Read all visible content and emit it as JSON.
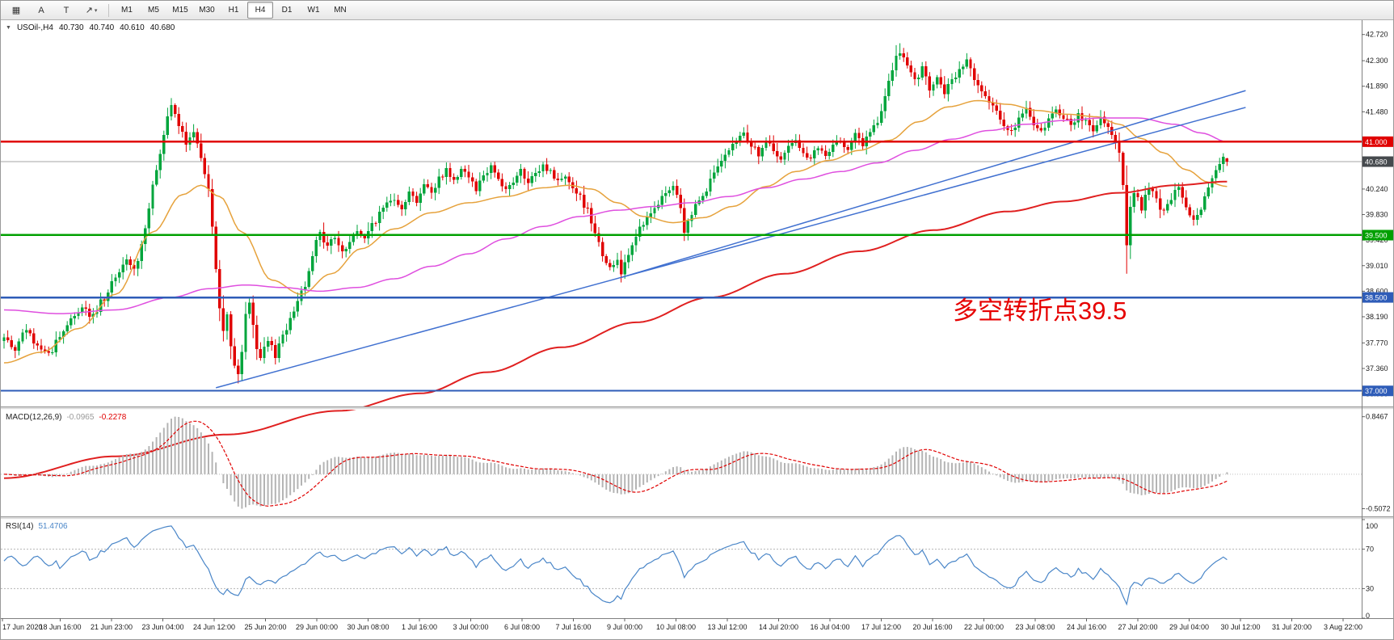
{
  "toolbar": {
    "tools": [
      {
        "id": "hatch-grid",
        "glyph": "▦"
      },
      {
        "id": "cursor-a",
        "glyph": "A"
      },
      {
        "id": "text-tool",
        "glyph": "T"
      },
      {
        "id": "arrow-tool",
        "glyph": "↗",
        "caret": "▾"
      }
    ],
    "timeframes": [
      "M1",
      "M5",
      "M15",
      "M30",
      "H1",
      "H4",
      "D1",
      "W1",
      "MN"
    ],
    "active_timeframe": "H4"
  },
  "chart": {
    "collapse_icon": "▼",
    "symbol_label": "USOil-,H4",
    "ohlc": {
      "open": "40.730",
      "high": "40.740",
      "low": "40.610",
      "close": "40.680"
    },
    "annotation": {
      "text": "多空转折点39.5",
      "color": "#e60000"
    }
  },
  "chart_data": {
    "type": "candlestick+indicators",
    "symbol": "USOil-",
    "timeframe": "H4",
    "last_ohlc": {
      "open": 40.73,
      "high": 40.74,
      "low": 40.61,
      "close": 40.68
    },
    "colors": {
      "candle_up": "#00a53c",
      "candle_down": "#e00000",
      "current_price_line": "#a6a6a6",
      "trendline": "#4070d0"
    },
    "price_axis": {
      "ticks": [
        "42.720",
        "42.300",
        "41.890",
        "41.480",
        "40.240",
        "39.830",
        "39.420",
        "39.010",
        "38.600",
        "38.190",
        "37.770",
        "37.360",
        "36.950"
      ],
      "badges": [
        {
          "text": "41.000",
          "value": 41.0,
          "color": "#e00000"
        },
        {
          "text": "40.680",
          "value": 40.68,
          "color": "#464a4e",
          "kind": "current"
        },
        {
          "text": "39.500",
          "value": 39.5,
          "color": "#00a000"
        },
        {
          "text": "38.500",
          "value": 38.5,
          "color": "#2e5cb8"
        },
        {
          "text": "37.000",
          "value": 37.0,
          "color": "#2e5cb8"
        }
      ]
    },
    "hlines": [
      {
        "value": 40.68,
        "color": "#a6a6a6",
        "width": 1,
        "kind": "current"
      },
      {
        "value": 41.0,
        "color": "#e00000",
        "width": 2.5
      },
      {
        "value": 39.5,
        "color": "#00a000",
        "width": 2.5
      },
      {
        "value": 38.5,
        "color": "#2e5cb8",
        "width": 2.5
      },
      {
        "value": 37.0,
        "color": "#2e5cb8",
        "width": 2
      }
    ],
    "trendlines": [
      {
        "i1": 57,
        "p1": 37.05,
        "i2": 334,
        "p2": 41.55
      },
      {
        "i1": 166,
        "p1": 38.82,
        "i2": 334,
        "p2": 41.82
      }
    ],
    "moving_averages": [
      {
        "name": "ma-fast-orange",
        "color": "#e6a23c",
        "w": 1.5,
        "anchors": [
          [
            0,
            37.45
          ],
          [
            10,
            37.62
          ],
          [
            20,
            38.0
          ],
          [
            30,
            38.55
          ],
          [
            40,
            39.55
          ],
          [
            48,
            40.15
          ],
          [
            53,
            40.3
          ],
          [
            58,
            40.12
          ],
          [
            64,
            39.55
          ],
          [
            72,
            38.78
          ],
          [
            80,
            38.55
          ],
          [
            88,
            38.88
          ],
          [
            96,
            39.28
          ],
          [
            105,
            39.6
          ],
          [
            115,
            39.86
          ],
          [
            125,
            40.02
          ],
          [
            135,
            40.12
          ],
          [
            145,
            40.26
          ],
          [
            152,
            40.3
          ],
          [
            158,
            40.24
          ],
          [
            165,
            40.02
          ],
          [
            172,
            39.8
          ],
          [
            180,
            39.7
          ],
          [
            188,
            39.78
          ],
          [
            196,
            39.96
          ],
          [
            205,
            40.28
          ],
          [
            213,
            40.52
          ],
          [
            222,
            40.7
          ],
          [
            230,
            40.86
          ],
          [
            238,
            41.02
          ],
          [
            246,
            41.32
          ],
          [
            254,
            41.56
          ],
          [
            262,
            41.66
          ],
          [
            270,
            41.6
          ],
          [
            278,
            41.5
          ],
          [
            286,
            41.44
          ],
          [
            294,
            41.4
          ],
          [
            300,
            41.28
          ],
          [
            306,
            41.05
          ],
          [
            312,
            40.82
          ],
          [
            318,
            40.55
          ],
          [
            324,
            40.35
          ],
          [
            329,
            40.28
          ]
        ]
      },
      {
        "name": "ma-mid-magenta",
        "color": "#df4fdf",
        "w": 1.5,
        "anchors": [
          [
            0,
            38.3
          ],
          [
            15,
            38.24
          ],
          [
            30,
            38.3
          ],
          [
            45,
            38.5
          ],
          [
            55,
            38.64
          ],
          [
            65,
            38.7
          ],
          [
            75,
            38.66
          ],
          [
            85,
            38.6
          ],
          [
            95,
            38.66
          ],
          [
            105,
            38.8
          ],
          [
            115,
            39.0
          ],
          [
            125,
            39.2
          ],
          [
            135,
            39.44
          ],
          [
            145,
            39.64
          ],
          [
            155,
            39.8
          ],
          [
            165,
            39.9
          ],
          [
            175,
            39.96
          ],
          [
            185,
            40.02
          ],
          [
            195,
            40.12
          ],
          [
            205,
            40.26
          ],
          [
            215,
            40.4
          ],
          [
            225,
            40.52
          ],
          [
            235,
            40.66
          ],
          [
            245,
            40.86
          ],
          [
            255,
            41.04
          ],
          [
            265,
            41.18
          ],
          [
            275,
            41.28
          ],
          [
            285,
            41.34
          ],
          [
            295,
            41.38
          ],
          [
            305,
            41.38
          ],
          [
            315,
            41.28
          ],
          [
            322,
            41.14
          ],
          [
            329,
            41.0
          ]
        ]
      },
      {
        "name": "ma-slow-red",
        "color": "#e02020",
        "w": 2,
        "anchors": [
          [
            0,
            35.6
          ],
          [
            30,
            35.95
          ],
          [
            60,
            36.3
          ],
          [
            90,
            36.68
          ],
          [
            112,
            36.96
          ],
          [
            130,
            37.3
          ],
          [
            150,
            37.7
          ],
          [
            170,
            38.1
          ],
          [
            190,
            38.5
          ],
          [
            210,
            38.88
          ],
          [
            230,
            39.24
          ],
          [
            250,
            39.58
          ],
          [
            270,
            39.88
          ],
          [
            285,
            40.04
          ],
          [
            300,
            40.18
          ],
          [
            315,
            40.3
          ],
          [
            329,
            40.36
          ]
        ]
      }
    ],
    "candles": {
      "count": 330,
      "close_anchors": [
        [
          0,
          37.85
        ],
        [
          3,
          37.7
        ],
        [
          6,
          37.95
        ],
        [
          9,
          37.72
        ],
        [
          12,
          37.6
        ],
        [
          15,
          37.88
        ],
        [
          18,
          38.12
        ],
        [
          21,
          38.35
        ],
        [
          24,
          38.18
        ],
        [
          27,
          38.5
        ],
        [
          30,
          38.78
        ],
        [
          33,
          39.1
        ],
        [
          35,
          38.92
        ],
        [
          37,
          39.35
        ],
        [
          39,
          39.95
        ],
        [
          41,
          40.55
        ],
        [
          43,
          41.15
        ],
        [
          45,
          41.55
        ],
        [
          47,
          41.28
        ],
        [
          49,
          40.95
        ],
        [
          51,
          41.1
        ],
        [
          53,
          40.8
        ],
        [
          55,
          40.25
        ],
        [
          56,
          39.6
        ],
        [
          57,
          38.95
        ],
        [
          58,
          38.35
        ],
        [
          59,
          37.95
        ],
        [
          60,
          38.2
        ],
        [
          61,
          37.7
        ],
        [
          62,
          37.38
        ],
        [
          63,
          37.25
        ],
        [
          64,
          37.65
        ],
        [
          65,
          38.25
        ],
        [
          66,
          38.45
        ],
        [
          67,
          38.0
        ],
        [
          68,
          37.65
        ],
        [
          69,
          37.52
        ],
        [
          71,
          37.78
        ],
        [
          73,
          37.58
        ],
        [
          75,
          37.92
        ],
        [
          77,
          38.12
        ],
        [
          79,
          38.48
        ],
        [
          81,
          38.72
        ],
        [
          83,
          39.22
        ],
        [
          85,
          39.52
        ],
        [
          87,
          39.32
        ],
        [
          89,
          39.48
        ],
        [
          91,
          39.22
        ],
        [
          93,
          39.38
        ],
        [
          95,
          39.58
        ],
        [
          97,
          39.42
        ],
        [
          99,
          39.68
        ],
        [
          101,
          39.82
        ],
        [
          103,
          40.02
        ],
        [
          105,
          40.12
        ],
        [
          107,
          39.96
        ],
        [
          109,
          40.18
        ],
        [
          111,
          40.06
        ],
        [
          113,
          40.32
        ],
        [
          115,
          40.16
        ],
        [
          117,
          40.42
        ],
        [
          119,
          40.56
        ],
        [
          121,
          40.36
        ],
        [
          123,
          40.6
        ],
        [
          125,
          40.46
        ],
        [
          127,
          40.26
        ],
        [
          129,
          40.46
        ],
        [
          131,
          40.62
        ],
        [
          133,
          40.42
        ],
        [
          135,
          40.22
        ],
        [
          137,
          40.36
        ],
        [
          139,
          40.52
        ],
        [
          141,
          40.32
        ],
        [
          143,
          40.46
        ],
        [
          145,
          40.62
        ],
        [
          147,
          40.52
        ],
        [
          149,
          40.36
        ],
        [
          151,
          40.46
        ],
        [
          153,
          40.3
        ],
        [
          155,
          40.1
        ],
        [
          157,
          39.9
        ],
        [
          159,
          39.58
        ],
        [
          161,
          39.2
        ],
        [
          163,
          38.95
        ],
        [
          165,
          39.12
        ],
        [
          166,
          38.92
        ],
        [
          168,
          39.22
        ],
        [
          170,
          39.52
        ],
        [
          172,
          39.66
        ],
        [
          174,
          39.82
        ],
        [
          176,
          40.02
        ],
        [
          178,
          40.16
        ],
        [
          180,
          40.3
        ],
        [
          182,
          39.9
        ],
        [
          183,
          39.55
        ],
        [
          185,
          39.85
        ],
        [
          187,
          40.1
        ],
        [
          189,
          40.26
        ],
        [
          191,
          40.5
        ],
        [
          193,
          40.66
        ],
        [
          195,
          40.82
        ],
        [
          197,
          41.0
        ],
        [
          199,
          41.15
        ],
        [
          201,
          40.95
        ],
        [
          203,
          40.8
        ],
        [
          205,
          41.0
        ],
        [
          207,
          40.85
        ],
        [
          209,
          40.7
        ],
        [
          211,
          40.9
        ],
        [
          213,
          41.05
        ],
        [
          215,
          40.85
        ],
        [
          217,
          40.7
        ],
        [
          219,
          40.9
        ],
        [
          221,
          40.75
        ],
        [
          223,
          40.9
        ],
        [
          225,
          41.05
        ],
        [
          227,
          40.9
        ],
        [
          229,
          41.1
        ],
        [
          231,
          40.95
        ],
        [
          233,
          41.15
        ],
        [
          235,
          41.3
        ],
        [
          237,
          41.7
        ],
        [
          239,
          42.2
        ],
        [
          241,
          42.45
        ],
        [
          243,
          42.2
        ],
        [
          245,
          41.95
        ],
        [
          247,
          42.15
        ],
        [
          249,
          41.85
        ],
        [
          251,
          42.0
        ],
        [
          253,
          41.8
        ],
        [
          255,
          41.95
        ],
        [
          257,
          42.15
        ],
        [
          259,
          42.3
        ],
        [
          261,
          42.05
        ],
        [
          263,
          41.8
        ],
        [
          265,
          41.6
        ],
        [
          267,
          41.45
        ],
        [
          269,
          41.3
        ],
        [
          271,
          41.15
        ],
        [
          273,
          41.35
        ],
        [
          275,
          41.5
        ],
        [
          277,
          41.3
        ],
        [
          279,
          41.15
        ],
        [
          281,
          41.35
        ],
        [
          283,
          41.55
        ],
        [
          285,
          41.4
        ],
        [
          287,
          41.25
        ],
        [
          289,
          41.45
        ],
        [
          291,
          41.3
        ],
        [
          293,
          41.15
        ],
        [
          295,
          41.35
        ],
        [
          297,
          41.2
        ],
        [
          299,
          41.05
        ],
        [
          300,
          40.8
        ],
        [
          301,
          40.3
        ],
        [
          302,
          39.3
        ],
        [
          303,
          40.0
        ],
        [
          304,
          40.15
        ],
        [
          306,
          39.95
        ],
        [
          308,
          40.25
        ],
        [
          310,
          40.05
        ],
        [
          312,
          39.85
        ],
        [
          314,
          40.1
        ],
        [
          316,
          40.25
        ],
        [
          318,
          39.95
        ],
        [
          320,
          39.7
        ],
        [
          322,
          39.85
        ],
        [
          324,
          40.3
        ],
        [
          326,
          40.55
        ],
        [
          328,
          40.75
        ],
        [
          329,
          40.68
        ]
      ],
      "overrides": [
        {
          "i": 302,
          "low": 38.88
        },
        {
          "i": 241,
          "high": 42.58
        },
        {
          "i": 63,
          "low": 37.12
        }
      ]
    },
    "macd": {
      "label": "MACD(12,26,9)",
      "values_text": [
        "-0.0965",
        "-0.2278"
      ],
      "axis_max": "0.8467",
      "axis_min": "-0.5072",
      "histogram_color": "#b4b4b4",
      "signal_color": "#e00000"
    },
    "rsi": {
      "label": "RSI(14)",
      "value_text": "51.4706",
      "levels": [
        100,
        70,
        30,
        0
      ],
      "dashed_levels": [
        70,
        30
      ],
      "line_color": "#4a86c8"
    },
    "time_axis": [
      "17 Jun 2020",
      "18 Jun 16:00",
      "21 Jun 23:00",
      "23 Jun 04:00",
      "24 Jun 12:00",
      "25 Jun 20:00",
      "29 Jun 00:00",
      "30 Jun 08:00",
      "1 Jul 16:00",
      "3 Jul 00:00",
      "6 Jul 08:00",
      "7 Jul 16:00",
      "9 Jul 00:00",
      "10 Jul 08:00",
      "13 Jul 12:00",
      "14 Jul 20:00",
      "16 Jul 04:00",
      "17 Jul 12:00",
      "20 Jul 16:00",
      "22 Jul 00:00",
      "23 Jul 08:00",
      "24 Jul 16:00",
      "27 Jul 20:00",
      "29 Jul 04:00",
      "30 Jul 12:00",
      "31 Jul 20:00",
      "3 Aug 22:00"
    ]
  }
}
